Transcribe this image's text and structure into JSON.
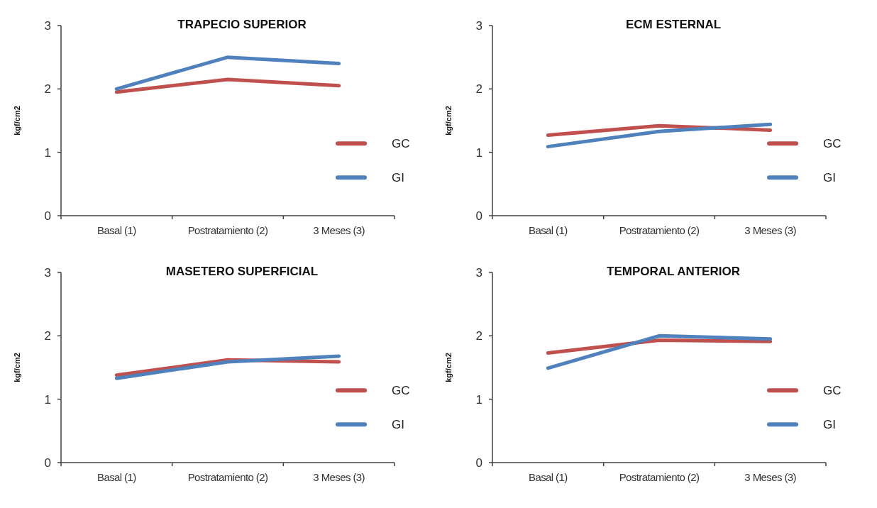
{
  "chart_data": [
    {
      "type": "line",
      "title": "TRAPECIO SUPERIOR",
      "ylabel": "kgf/cm2",
      "categories": [
        "Basal (1)",
        "Postratamiento (2)",
        "3 Meses (3)"
      ],
      "ylim": [
        0,
        3
      ],
      "yticks": [
        0,
        1,
        2,
        3
      ],
      "grid": false,
      "legend": "right",
      "marker": "none",
      "series": [
        {
          "name": "GC",
          "color": "#c0504d",
          "values": [
            1.95,
            2.15,
            2.05
          ]
        },
        {
          "name": "GI",
          "color": "#4f81bd",
          "values": [
            2.0,
            2.5,
            2.4
          ]
        }
      ]
    },
    {
      "type": "line",
      "title": "ECM ESTERNAL",
      "ylabel": "kgf/cm2",
      "categories": [
        "Basal (1)",
        "Postratamiento (2)",
        "3 Meses (3)"
      ],
      "ylim": [
        0,
        3
      ],
      "yticks": [
        0,
        1,
        2,
        3
      ],
      "grid": false,
      "legend": "right",
      "marker": "none",
      "series": [
        {
          "name": "GC",
          "color": "#c0504d",
          "values": [
            1.27,
            1.42,
            1.35
          ]
        },
        {
          "name": "GI",
          "color": "#4f81bd",
          "values": [
            1.09,
            1.33,
            1.44
          ]
        }
      ]
    },
    {
      "type": "line",
      "title": "MASETERO SUPERFICIAL",
      "ylabel": "kgf/cm2",
      "categories": [
        "Basal (1)",
        "Postratamiento (2)",
        "3 Meses (3)"
      ],
      "ylim": [
        0,
        3
      ],
      "yticks": [
        0,
        1,
        2,
        3
      ],
      "grid": false,
      "legend": "right",
      "marker": "none",
      "series": [
        {
          "name": "GC",
          "color": "#c0504d",
          "values": [
            1.38,
            1.62,
            1.59
          ]
        },
        {
          "name": "GI",
          "color": "#4f81bd",
          "values": [
            1.33,
            1.59,
            1.68
          ]
        }
      ]
    },
    {
      "type": "line",
      "title": "TEMPORAL ANTERIOR",
      "ylabel": "kgf/cm2",
      "categories": [
        "Basal (1)",
        "Postratamiento (2)",
        "3 Meses (3)"
      ],
      "ylim": [
        0,
        3
      ],
      "yticks": [
        0,
        1,
        2,
        3
      ],
      "grid": false,
      "legend": "right",
      "marker": "none",
      "series": [
        {
          "name": "GC",
          "color": "#c0504d",
          "values": [
            1.73,
            1.93,
            1.91
          ]
        },
        {
          "name": "GI",
          "color": "#4f81bd",
          "values": [
            1.49,
            2.0,
            1.95
          ]
        }
      ]
    }
  ]
}
